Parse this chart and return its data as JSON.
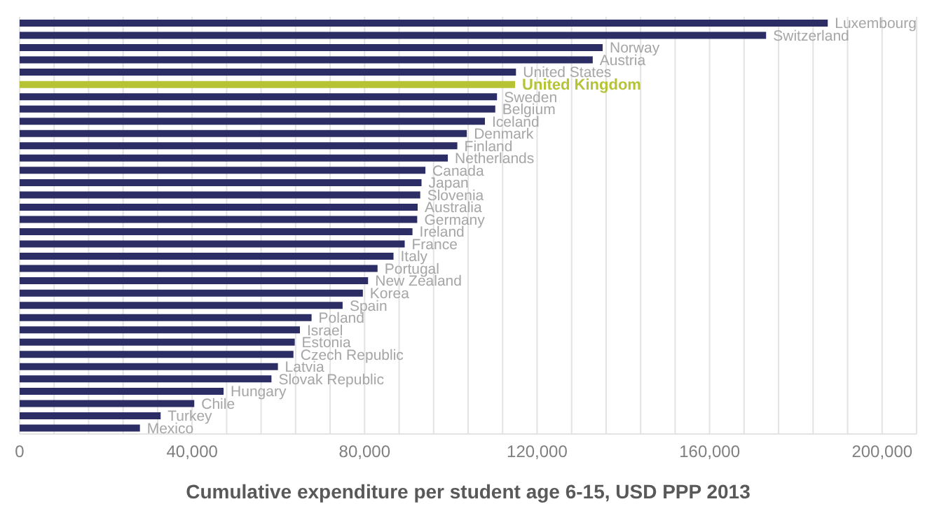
{
  "chart_data": {
    "type": "bar",
    "orientation": "horizontal",
    "xlabel": "Cumulative expenditure per student age 6-15, USD PPP 2013",
    "categories": [
      "Luxembourg",
      "Switzerland",
      "Norway",
      "Austria",
      "United States",
      "United Kingdom",
      "Sweden",
      "Belgium",
      "Iceland",
      "Denmark",
      "Finland",
      "Netherlands",
      "Canada",
      "Japan",
      "Slovenia",
      "Australia",
      "Germany",
      "Ireland",
      "France",
      "Italy",
      "Portugal",
      "New Zealand",
      "Korea",
      "Spain",
      "Poland",
      "Israel",
      "Estonia",
      "Czech Republic",
      "Latvia",
      "Slovak Republic",
      "Hungary",
      "Chile",
      "Turkey",
      "Mexico"
    ],
    "values": [
      187400,
      173100,
      135200,
      132900,
      115100,
      114900,
      110700,
      110300,
      107900,
      103700,
      101500,
      99300,
      94100,
      93200,
      92900,
      92300,
      92200,
      91100,
      89300,
      86700,
      83000,
      80800,
      79600,
      74900,
      67700,
      65000,
      63800,
      63500,
      59900,
      58400,
      47300,
      40500,
      32700,
      27900
    ],
    "colors": [
      "#2b2d64",
      "#2b2d64",
      "#2b2d64",
      "#2b2d64",
      "#2b2d64",
      "#b5c334",
      "#2b2d64",
      "#2b2d64",
      "#2b2d64",
      "#2b2d64",
      "#2b2d64",
      "#2b2d64",
      "#2b2d64",
      "#2b2d64",
      "#2b2d64",
      "#2b2d64",
      "#2b2d64",
      "#2b2d64",
      "#2b2d64",
      "#2b2d64",
      "#2b2d64",
      "#2b2d64",
      "#2b2d64",
      "#2b2d64",
      "#2b2d64",
      "#2b2d64",
      "#2b2d64",
      "#2b2d64",
      "#2b2d64",
      "#2b2d64",
      "#2b2d64",
      "#2b2d64",
      "#2b2d64",
      "#2b2d64"
    ],
    "xlim": [
      0,
      208000
    ],
    "xticks": [
      0,
      {
        "value": 8000,
        "label": null
      },
      {
        "value": 16000,
        "label": null
      },
      {
        "value": 24000,
        "label": null
      },
      {
        "value": 32000,
        "label": null
      },
      {
        "value": 40000,
        "label": "40,000"
      },
      {
        "value": 48000,
        "label": null
      },
      {
        "value": 56000,
        "label": null
      },
      {
        "value": 64000,
        "label": null
      },
      {
        "value": 72000,
        "label": null
      },
      {
        "value": 80000,
        "label": "80,000"
      },
      {
        "value": 88000,
        "label": null
      },
      {
        "value": 96000,
        "label": null
      },
      {
        "value": 104000,
        "label": null
      },
      {
        "value": 112000,
        "label": null
      },
      {
        "value": 120000,
        "label": "120,000"
      },
      {
        "value": 128000,
        "label": null
      },
      {
        "value": 136000,
        "label": null
      },
      {
        "value": 144000,
        "label": null
      },
      {
        "value": 152000,
        "label": null
      },
      {
        "value": 160000,
        "label": "160,000"
      },
      {
        "value": 168000,
        "label": null
      },
      {
        "value": 176000,
        "label": null
      },
      {
        "value": 184000,
        "label": null
      },
      {
        "value": 192000,
        "label": null
      },
      {
        "value": 200000,
        "label": "200,000"
      }
    ],
    "grid": "x"
  }
}
